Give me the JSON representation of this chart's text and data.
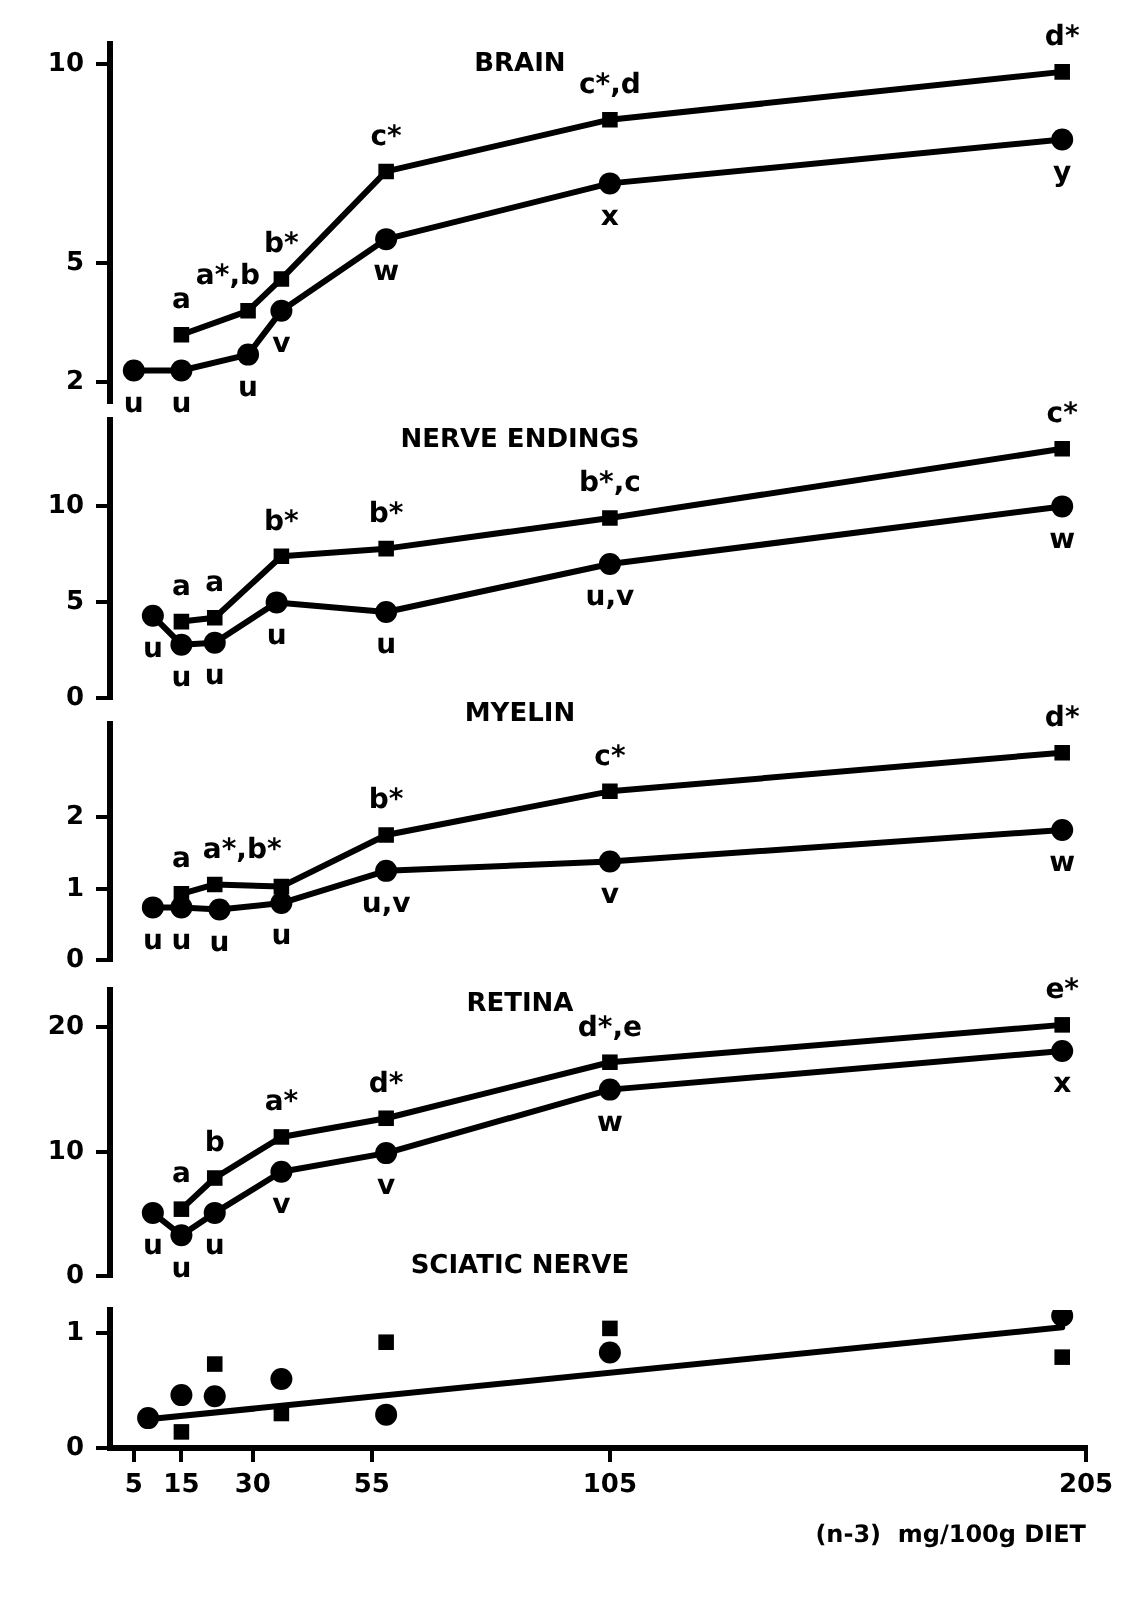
{
  "chart_data": [
    {
      "type": "line",
      "title": "BRAIN",
      "xlim": [
        0,
        205
      ],
      "ylim": [
        1.5,
        10.5
      ],
      "yticks": [
        2,
        5,
        10
      ],
      "tick_labels": "y",
      "grid": false,
      "legend": false,
      "series": [
        {
          "type": "line",
          "marker": "square",
          "color": "#000000",
          "x": [
            15,
            29,
            36,
            58,
            105,
            200
          ],
          "values": [
            3.2,
            3.8,
            4.6,
            7.3,
            8.6,
            9.8
          ]
        },
        {
          "type": "line",
          "marker": "circle",
          "color": "#000000",
          "x": [
            5,
            15,
            29,
            36,
            58,
            105,
            200
          ],
          "values": [
            2.3,
            2.3,
            2.7,
            3.8,
            5.6,
            7.0,
            8.1
          ]
        }
      ],
      "annotations": [
        {
          "text": "a",
          "x": 15,
          "y": 3.2
        },
        {
          "text": "a*,b",
          "x": 29,
          "y": 3.8
        },
        {
          "text": "b*",
          "x": 36,
          "y": 4.6
        },
        {
          "text": "c*",
          "x": 58,
          "y": 7.3
        },
        {
          "text": "c*,d",
          "x": 105,
          "y": 8.6
        },
        {
          "text": "d*",
          "x": 200,
          "y": 9.8
        },
        {
          "text": "u",
          "x": 5,
          "y": 2.3
        },
        {
          "text": "u",
          "x": 15,
          "y": 2.3
        },
        {
          "text": "u",
          "x": 29,
          "y": 2.7
        },
        {
          "text": "v",
          "x": 36,
          "y": 3.8
        },
        {
          "text": "w",
          "x": 58,
          "y": 5.6
        },
        {
          "text": "x",
          "x": 105,
          "y": 7.0
        },
        {
          "text": "y",
          "x": 200,
          "y": 8.1
        }
      ]
    },
    {
      "type": "line",
      "title": "NERVE ENDINGS",
      "xlim": [
        0,
        205
      ],
      "ylim": [
        0,
        14.5
      ],
      "yticks": [
        0,
        5,
        10
      ],
      "tick_labels": "y",
      "grid": false,
      "legend": false,
      "series": [
        {
          "type": "line",
          "marker": "square",
          "color": "#000000",
          "x": [
            15,
            22,
            36,
            58,
            105,
            200
          ],
          "values": [
            4.0,
            4.2,
            7.4,
            7.8,
            9.4,
            13.0
          ]
        },
        {
          "type": "line",
          "marker": "circle",
          "color": "#000000",
          "x": [
            9,
            15,
            22,
            35,
            58,
            105,
            200
          ],
          "values": [
            4.3,
            2.8,
            2.9,
            5.0,
            4.5,
            7.0,
            10.0
          ]
        }
      ],
      "annotations": [
        {
          "text": "a",
          "x": 15,
          "y": 4.0
        },
        {
          "text": "a",
          "x": 22,
          "y": 4.2
        },
        {
          "text": "b*",
          "x": 36,
          "y": 7.4
        },
        {
          "text": "b*",
          "x": 58,
          "y": 7.8
        },
        {
          "text": "b*,c",
          "x": 105,
          "y": 9.4
        },
        {
          "text": "c*",
          "x": 200,
          "y": 13.0
        },
        {
          "text": "u",
          "x": 9,
          "y": 4.3
        },
        {
          "text": "u",
          "x": 15,
          "y": 2.8
        },
        {
          "text": "u",
          "x": 22,
          "y": 2.9
        },
        {
          "text": "u",
          "x": 35,
          "y": 5.0
        },
        {
          "text": "u",
          "x": 58,
          "y": 4.5
        },
        {
          "text": "u,v",
          "x": 105,
          "y": 7.0
        },
        {
          "text": "w",
          "x": 200,
          "y": 10.0
        }
      ]
    },
    {
      "type": "line",
      "title": "MYELIN",
      "xlim": [
        0,
        205
      ],
      "ylim": [
        0,
        3.3
      ],
      "yticks": [
        0,
        1,
        2
      ],
      "tick_labels": "y",
      "grid": false,
      "legend": false,
      "series": [
        {
          "type": "line",
          "marker": "square",
          "color": "#000000",
          "x": [
            15,
            22,
            36,
            58,
            105,
            200
          ],
          "values": [
            0.93,
            1.06,
            1.03,
            1.75,
            2.36,
            2.9
          ]
        },
        {
          "type": "line",
          "marker": "circle",
          "color": "#000000",
          "x": [
            9,
            15,
            23,
            36,
            58,
            105,
            200
          ],
          "values": [
            0.74,
            0.74,
            0.71,
            0.8,
            1.25,
            1.38,
            1.82
          ]
        }
      ],
      "annotations": [
        {
          "text": "a",
          "x": 15,
          "y": 0.93
        },
        {
          "text": "a*,b*",
          "x": 22,
          "y": 1.06
        },
        {
          "text": "b*",
          "x": 58,
          "y": 1.75
        },
        {
          "text": "c*",
          "x": 105,
          "y": 2.36
        },
        {
          "text": "d*",
          "x": 200,
          "y": 2.9
        },
        {
          "text": "u",
          "x": 9,
          "y": 0.74
        },
        {
          "text": "u",
          "x": 15,
          "y": 0.74
        },
        {
          "text": "u",
          "x": 23,
          "y": 0.71
        },
        {
          "text": "u",
          "x": 36,
          "y": 0.8
        },
        {
          "text": "u,v",
          "x": 58,
          "y": 1.25
        },
        {
          "text": "v",
          "x": 105,
          "y": 1.38
        },
        {
          "text": "w",
          "x": 200,
          "y": 1.82
        }
      ]
    },
    {
      "type": "line",
      "title": "RETINA",
      "xlim": [
        0,
        205
      ],
      "ylim": [
        0,
        23
      ],
      "yticks": [
        0,
        10,
        20
      ],
      "tick_labels": "y",
      "grid": false,
      "legend": false,
      "series": [
        {
          "type": "line",
          "marker": "square",
          "color": "#000000",
          "x": [
            15,
            22,
            36,
            58,
            105,
            200
          ],
          "values": [
            5.4,
            7.9,
            11.2,
            12.7,
            17.2,
            20.2
          ]
        },
        {
          "type": "line",
          "marker": "circle",
          "color": "#000000",
          "x": [
            9,
            15,
            22,
            36,
            58,
            105,
            200
          ],
          "values": [
            5.1,
            3.3,
            5.1,
            8.4,
            9.9,
            15.0,
            18.1
          ]
        }
      ],
      "annotations": [
        {
          "text": "a",
          "x": 15,
          "y": 5.4
        },
        {
          "text": "b",
          "x": 22,
          "y": 7.9
        },
        {
          "text": "a*",
          "x": 36,
          "y": 11.2
        },
        {
          "text": "d*",
          "x": 58,
          "y": 12.7
        },
        {
          "text": "d*,e",
          "x": 105,
          "y": 17.2
        },
        {
          "text": "e*",
          "x": 200,
          "y": 20.2
        },
        {
          "text": "u",
          "x": 9,
          "y": 5.1
        },
        {
          "text": "u",
          "x": 15,
          "y": 3.3
        },
        {
          "text": "u",
          "x": 22,
          "y": 5.1
        },
        {
          "text": "v",
          "x": 36,
          "y": 8.4
        },
        {
          "text": "v",
          "x": 58,
          "y": 9.9
        },
        {
          "text": "w",
          "x": 105,
          "y": 15.0
        },
        {
          "text": "x",
          "x": 200,
          "y": 18.1
        }
      ]
    },
    {
      "type": "line",
      "title": "SCIATIC NERVE",
      "xlabel": "(n-3)  mg/100g DIET",
      "xlim": [
        0,
        205
      ],
      "xticks": [
        5,
        15,
        30,
        55,
        105,
        205
      ],
      "ylim": [
        0,
        1.2
      ],
      "yticks": [
        0,
        1
      ],
      "grid": false,
      "legend": false,
      "series": [
        {
          "type": "scatter",
          "marker": "circle",
          "color": "#000000",
          "x": [
            8,
            15,
            22,
            36,
            58,
            105,
            200
          ],
          "values": [
            0.26,
            0.46,
            0.45,
            0.6,
            0.29,
            0.83,
            1.15
          ]
        },
        {
          "type": "scatter",
          "marker": "square",
          "color": "#000000",
          "x": [
            15,
            22,
            36,
            58,
            105,
            200
          ],
          "values": [
            0.14,
            0.73,
            0.3,
            0.92,
            1.04,
            0.79
          ]
        },
        {
          "type": "line",
          "marker": "none",
          "color": "#000000",
          "x": [
            8,
            200
          ],
          "values": [
            0.25,
            1.05
          ]
        }
      ]
    }
  ]
}
